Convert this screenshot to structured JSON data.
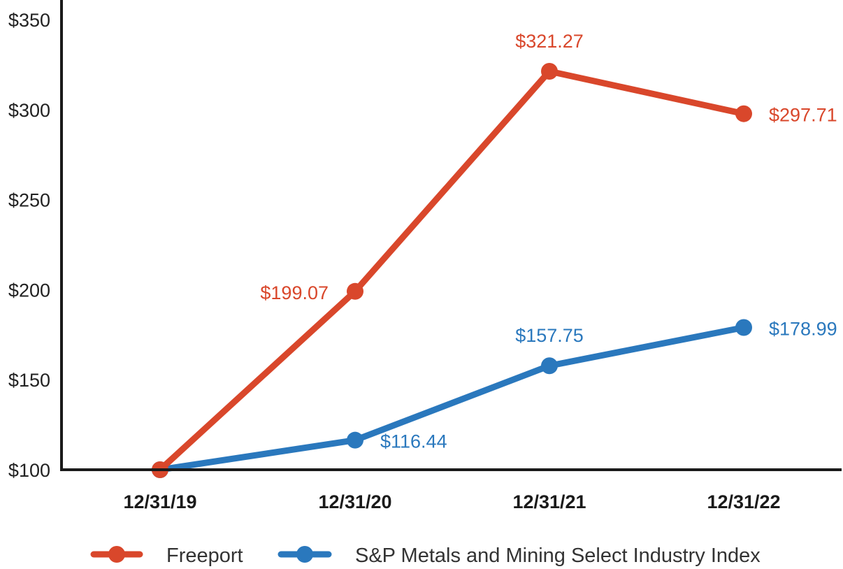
{
  "chart_data": {
    "type": "line",
    "title": "",
    "xlabel": "",
    "ylabel": "",
    "categories": [
      "12/31/19",
      "12/31/20",
      "12/31/21",
      "12/31/22"
    ],
    "ylim": [
      100,
      350
    ],
    "yticks": [
      100,
      150,
      200,
      250,
      300,
      350
    ],
    "ytick_labels": [
      "$100",
      "$150",
      "$200",
      "$250",
      "$300",
      "$350"
    ],
    "grid": false,
    "legend_position": "bottom",
    "series": [
      {
        "name": "Freeport",
        "color": "#d9472b",
        "values": [
          100,
          199.07,
          321.27,
          297.71
        ],
        "labels": [
          "",
          "$199.07",
          "$321.27",
          "$297.71"
        ],
        "label_side": [
          "",
          "left",
          "above",
          "right"
        ]
      },
      {
        "name": "S&P Metals and Mining Select Industry Index",
        "color": "#2a78bd",
        "values": [
          100,
          116.44,
          157.75,
          178.99
        ],
        "labels": [
          "",
          "$116.44",
          "$157.75",
          "$178.99"
        ],
        "label_side": [
          "",
          "right",
          "above",
          "right"
        ]
      }
    ]
  }
}
